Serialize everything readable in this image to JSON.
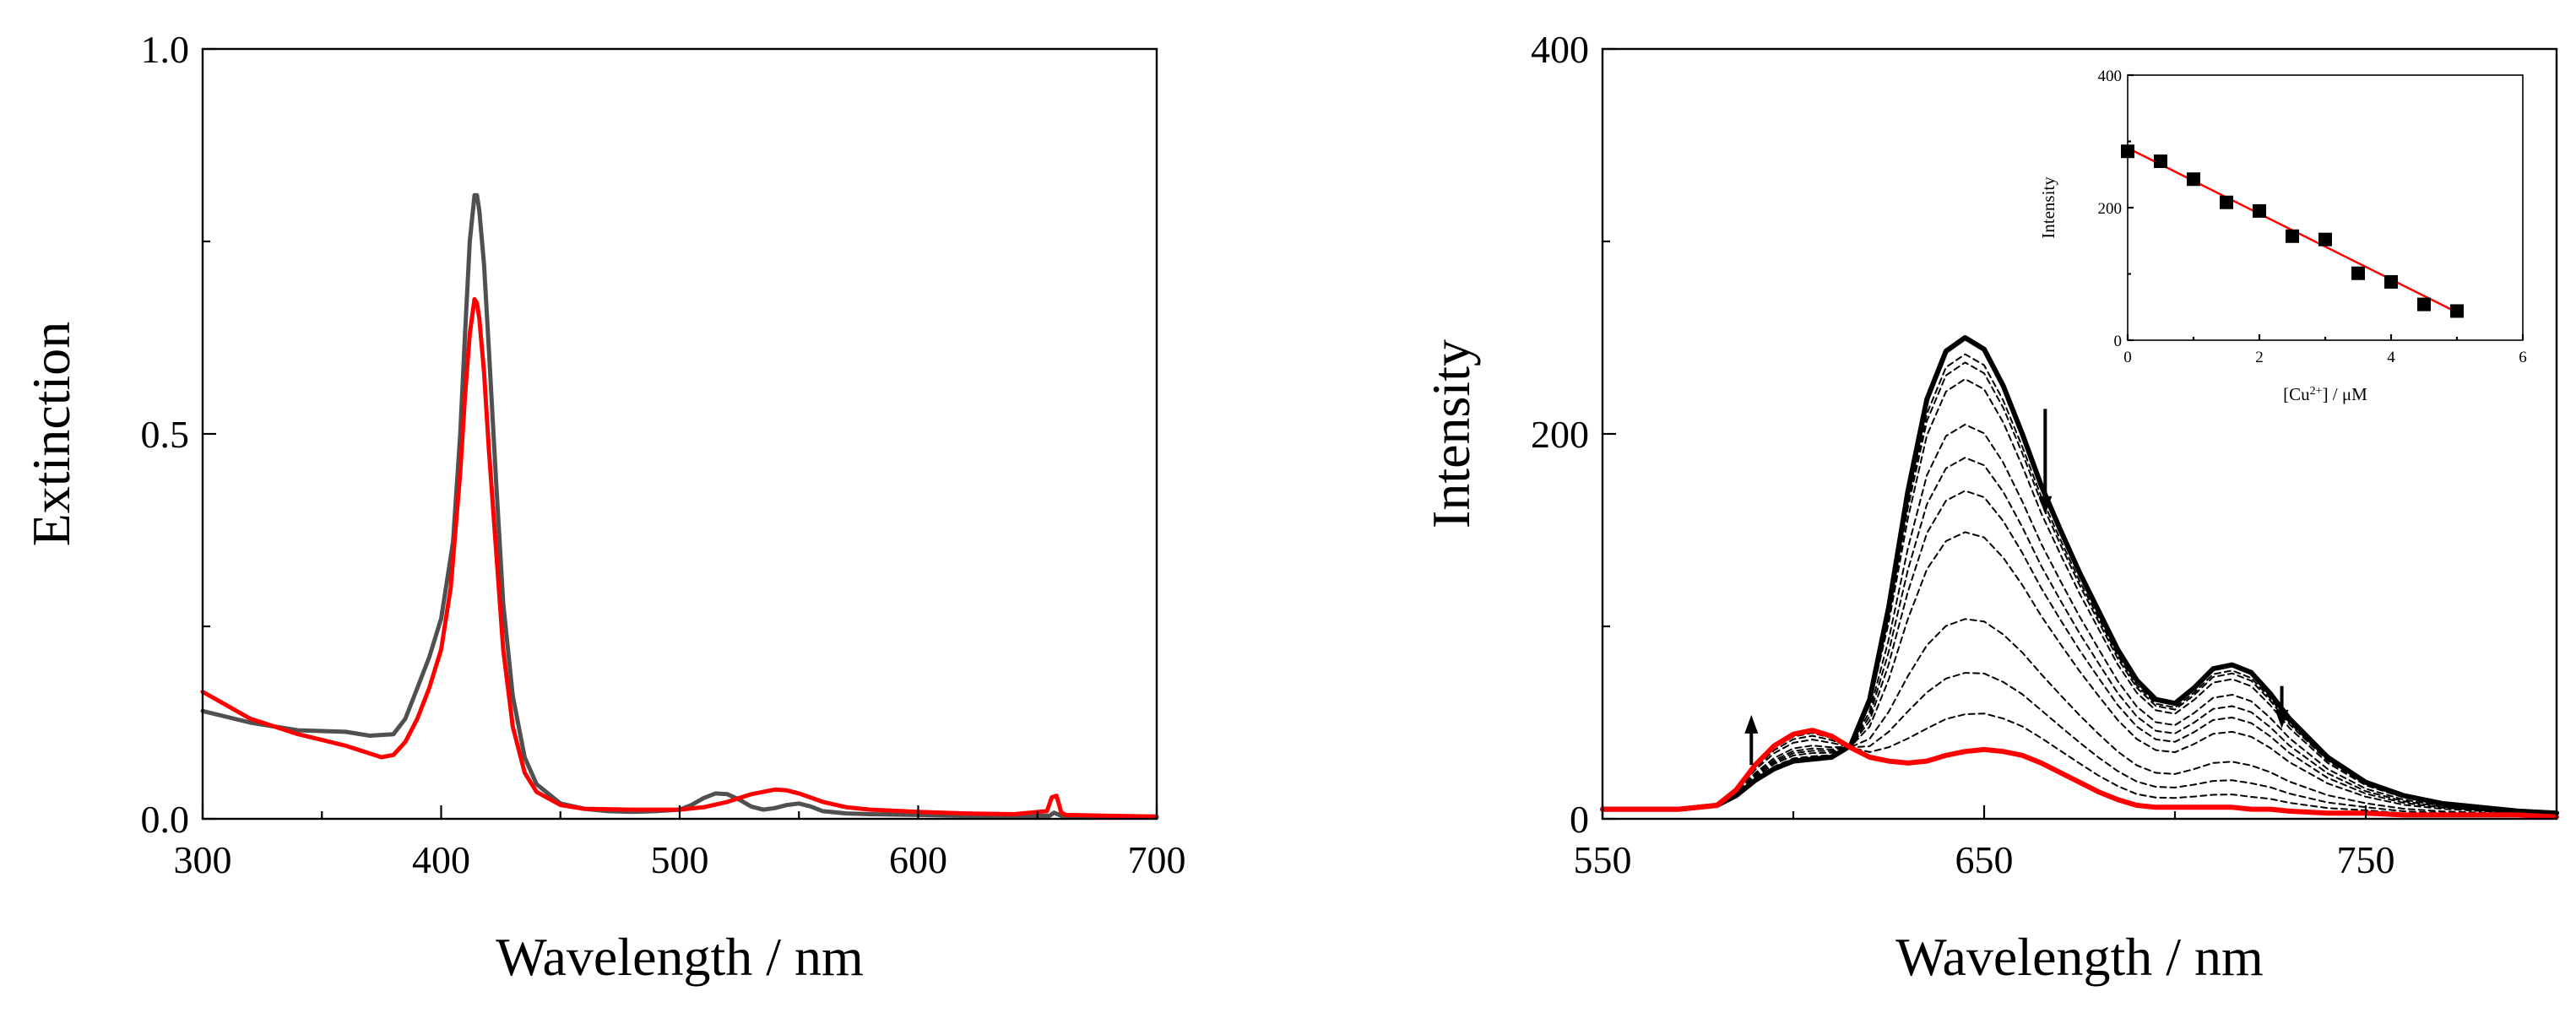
{
  "chart_data": [
    {
      "type": "line",
      "xlabel": "Wavelength / nm",
      "ylabel": "Extinction",
      "xlim": [
        300,
        700
      ],
      "ylim": [
        0,
        1.0
      ],
      "xticks": [
        "300",
        "400",
        "500",
        "600",
        "700"
      ],
      "yticks": [
        "0.0",
        "0.5",
        "1.0"
      ],
      "grid": false,
      "series": [
        {
          "color": "#505050",
          "x": [
            300,
            320,
            340,
            360,
            370,
            380,
            385,
            390,
            395,
            400,
            405,
            408,
            410,
            412,
            414,
            415,
            416,
            418,
            420,
            423,
            426,
            430,
            435,
            440,
            450,
            460,
            470,
            480,
            490,
            500,
            505,
            510,
            515,
            520,
            525,
            530,
            535,
            540,
            545,
            550,
            555,
            560,
            570,
            580,
            600,
            620,
            640,
            655,
            657,
            660,
            680,
            700
          ],
          "y": [
            0.14,
            0.125,
            0.115,
            0.113,
            0.108,
            0.11,
            0.13,
            0.17,
            0.21,
            0.26,
            0.36,
            0.5,
            0.63,
            0.75,
            0.81,
            0.81,
            0.79,
            0.72,
            0.61,
            0.44,
            0.28,
            0.16,
            0.08,
            0.045,
            0.02,
            0.013,
            0.01,
            0.009,
            0.01,
            0.012,
            0.018,
            0.027,
            0.033,
            0.032,
            0.025,
            0.016,
            0.012,
            0.014,
            0.018,
            0.02,
            0.016,
            0.01,
            0.007,
            0.006,
            0.005,
            0.004,
            0.004,
            0.004,
            0.008,
            0.004,
            0.003,
            0.002
          ]
        },
        {
          "color": "#ff0000",
          "x": [
            300,
            320,
            340,
            360,
            370,
            375,
            380,
            385,
            390,
            395,
            400,
            404,
            408,
            410,
            412,
            414,
            415,
            416,
            418,
            420,
            423,
            426,
            430,
            435,
            440,
            450,
            460,
            480,
            500,
            510,
            520,
            530,
            540,
            545,
            550,
            560,
            570,
            580,
            600,
            620,
            640,
            654,
            656,
            658,
            660,
            662,
            680,
            700
          ],
          "y": [
            0.165,
            0.13,
            0.11,
            0.095,
            0.085,
            0.08,
            0.083,
            0.1,
            0.13,
            0.17,
            0.22,
            0.3,
            0.45,
            0.55,
            0.63,
            0.675,
            0.67,
            0.65,
            0.58,
            0.48,
            0.35,
            0.22,
            0.12,
            0.06,
            0.035,
            0.018,
            0.013,
            0.012,
            0.012,
            0.015,
            0.022,
            0.032,
            0.038,
            0.037,
            0.033,
            0.022,
            0.015,
            0.012,
            0.009,
            0.007,
            0.006,
            0.01,
            0.028,
            0.03,
            0.008,
            0.005,
            0.004,
            0.003
          ]
        }
      ]
    },
    {
      "type": "line",
      "xlabel": "Wavelength / nm",
      "ylabel": "Intensity",
      "xlim": [
        550,
        800
      ],
      "ylim": [
        0,
        400
      ],
      "xticks": [
        "550",
        "650",
        "750"
      ],
      "yticks": [
        "0",
        "200",
        "400"
      ],
      "grid": false,
      "x": [
        550,
        570,
        580,
        585,
        590,
        595,
        600,
        605,
        610,
        615,
        620,
        625,
        630,
        635,
        640,
        645,
        650,
        655,
        660,
        665,
        670,
        675,
        680,
        685,
        690,
        695,
        700,
        705,
        710,
        715,
        720,
        725,
        730,
        740,
        750,
        760,
        770,
        780,
        790,
        800
      ],
      "start_curve": [
        5,
        5,
        7,
        12,
        20,
        26,
        30,
        31,
        32,
        38,
        62,
        110,
        170,
        218,
        243,
        250,
        244,
        225,
        200,
        173,
        150,
        128,
        108,
        88,
        72,
        62,
        60,
        68,
        78,
        80,
        76,
        65,
        52,
        32,
        19,
        12,
        8,
        6,
        4,
        3
      ],
      "end_curve": [
        5,
        5,
        7,
        15,
        28,
        38,
        44,
        46,
        43,
        37,
        32,
        30,
        29,
        30,
        33,
        35,
        36,
        35,
        33,
        29,
        24,
        19,
        14,
        10,
        7,
        6,
        6,
        6,
        6,
        6,
        5,
        5,
        4,
        3,
        3,
        2,
        2,
        2,
        2,
        1
      ],
      "dashed_peak_factors": [
        0.96,
        0.94,
        0.9,
        0.79,
        0.71,
        0.63,
        0.53,
        0.32,
        0.19,
        0.09
      ],
      "arrows": [
        {
          "x": 589,
          "from": 28,
          "to": 54
        },
        {
          "x": 666,
          "from": 213,
          "to": 158
        },
        {
          "x": 728,
          "from": 69,
          "to": 47
        }
      ]
    },
    {
      "type": "scatter",
      "xlabel": "[Cu2+] / μM",
      "xlabel_parts": {
        "pre": "[Cu",
        "sup": "2+",
        "post": "] / μM"
      },
      "ylabel": "Intensity",
      "xlim": [
        0,
        6
      ],
      "ylim": [
        0,
        400
      ],
      "xticks": [
        "0",
        "2",
        "4",
        "6"
      ],
      "yticks": [
        "0",
        "200",
        "400"
      ],
      "x": [
        0,
        0.5,
        1,
        1.5,
        2,
        2.5,
        3,
        3.5,
        4,
        4.5,
        5
      ],
      "y": [
        285,
        270,
        243,
        208,
        195,
        157,
        152,
        101,
        88,
        54,
        44
      ],
      "fit": {
        "x": [
          0,
          5
        ],
        "y": [
          290,
          42
        ],
        "color": "#ff0000"
      }
    }
  ]
}
